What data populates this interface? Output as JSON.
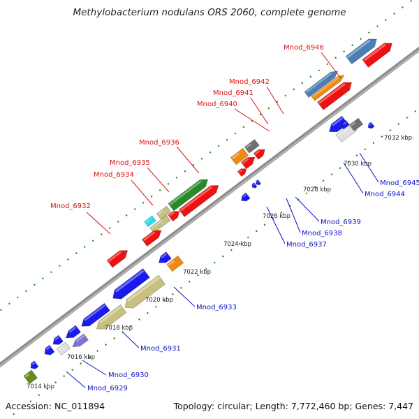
{
  "title": "Methylobacterium nodulans ORS 2060, complete genome",
  "footer": {
    "accession": "Accession: NC_011894",
    "summary": "Topology: circular; Length: 7,772,460 bp; Genes: 7,447"
  },
  "colors": {
    "backbone": "#808080",
    "tick": "#1a8a1a",
    "label_forward": "#dd1111",
    "label_reverse": "#1111cc"
  },
  "scale_labels": [
    "7014 kbp",
    "7016 kbp",
    "7018 kbp",
    "7020 kbp",
    "7022 kbp",
    "7024 kbp",
    "7026 kbp",
    "7028 kbp",
    "7030 kbp",
    "7032 kbp"
  ],
  "gene_labels_forward": [
    "Mnod_6932",
    "Mnod_6934",
    "Mnod_6935",
    "Mnod_6936",
    "Mnod_6940",
    "Mnod_6941",
    "Mnod_6942",
    "Mnod_6946"
  ],
  "gene_labels_reverse": [
    "Mnod_6929",
    "Mnod_6930",
    "Mnod_6931",
    "Mnod_6933",
    "Mnod_6937",
    "Mnod_6938",
    "Mnod_6939",
    "Mnod_6944",
    "Mnod_6945"
  ]
}
